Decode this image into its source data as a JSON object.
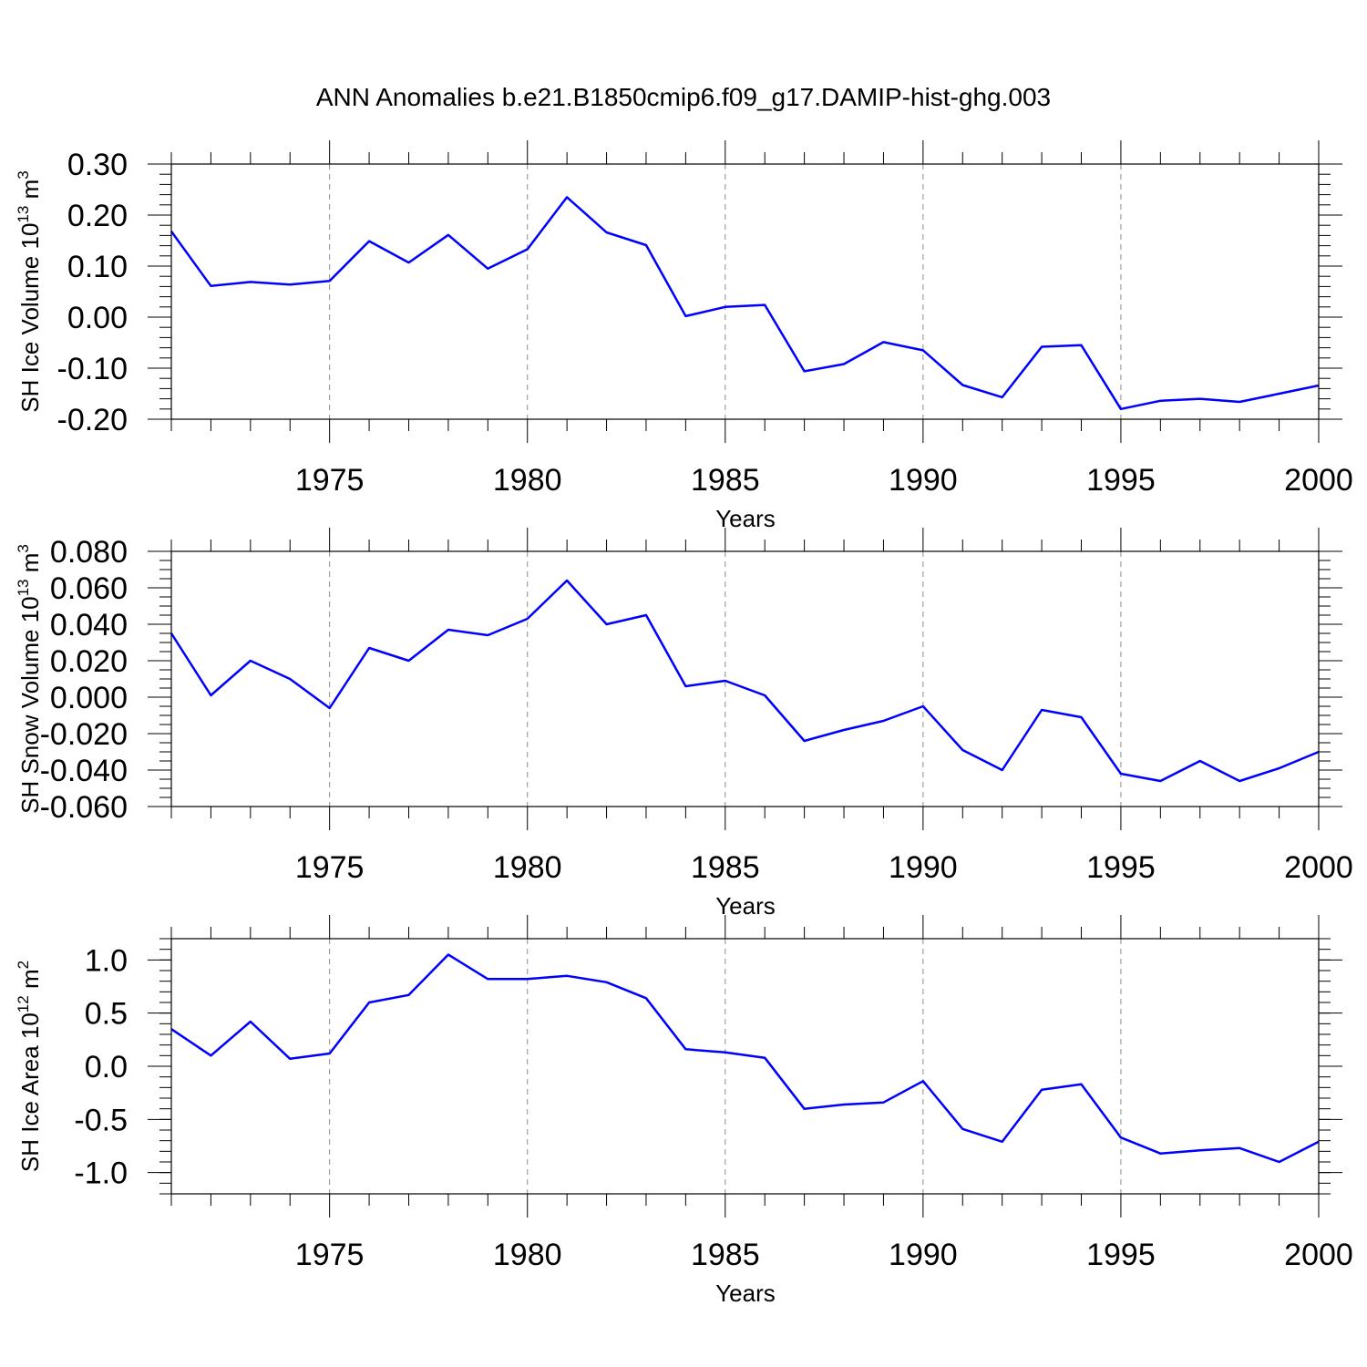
{
  "title": "ANN Anomalies b.e21.B1850cmip6.f09_g17.DAMIP-hist-ghg.003",
  "chart_data": [
    {
      "type": "line",
      "ylabel": {
        "text": "SH Ice Volume 10",
        "exp": "13",
        "unit": " m",
        "unit_exp": "3"
      },
      "xlabel": "Years",
      "xlim": [
        1971,
        2000
      ],
      "ylim": [
        -0.2,
        0.3
      ],
      "yticks": [
        -0.2,
        -0.1,
        0.0,
        0.1,
        0.2,
        0.3
      ],
      "ytick_labels": [
        "-0.20",
        "-0.10",
        "0.00",
        "0.10",
        "0.20",
        "0.30"
      ],
      "y_minor_step": 0.02,
      "xticks": [
        1975,
        1980,
        1985,
        1990,
        1995,
        2000
      ],
      "xtick_labels": [
        "1975",
        "1980",
        "1985",
        "1990",
        "1995",
        "2000"
      ],
      "grid": "vertical dashed at major x ticks",
      "color": "#0000ff",
      "x": [
        1971,
        1972,
        1973,
        1974,
        1975,
        1976,
        1977,
        1978,
        1979,
        1980,
        1981,
        1982,
        1983,
        1984,
        1985,
        1986,
        1987,
        1988,
        1989,
        1990,
        1991,
        1992,
        1993,
        1994,
        1995,
        1996,
        1997,
        1998,
        1999,
        2000
      ],
      "values": [
        0.168,
        0.061,
        0.069,
        0.064,
        0.071,
        0.149,
        0.107,
        0.161,
        0.095,
        0.133,
        0.235,
        0.166,
        0.141,
        0.002,
        0.02,
        0.024,
        -0.106,
        -0.092,
        -0.049,
        -0.065,
        -0.133,
        -0.157,
        -0.058,
        -0.055,
        -0.18,
        -0.164,
        -0.16,
        -0.166,
        -0.15,
        -0.134
      ]
    },
    {
      "type": "line",
      "ylabel": {
        "text": "SH Snow Volume 10",
        "exp": "13",
        "unit": " m",
        "unit_exp": "3"
      },
      "xlabel": "Years",
      "xlim": [
        1971,
        2000
      ],
      "ylim": [
        -0.06,
        0.08
      ],
      "yticks": [
        -0.06,
        -0.04,
        -0.02,
        0.0,
        0.02,
        0.04,
        0.06,
        0.08
      ],
      "ytick_labels": [
        "-0.060",
        "-0.040",
        "-0.020",
        "0.000",
        "0.020",
        "0.040",
        "0.060",
        "0.080"
      ],
      "y_minor_step": 0.005,
      "xticks": [
        1975,
        1980,
        1985,
        1990,
        1995,
        2000
      ],
      "xtick_labels": [
        "1975",
        "1980",
        "1985",
        "1990",
        "1995",
        "2000"
      ],
      "grid": "vertical dashed at major x ticks",
      "color": "#0000ff",
      "x": [
        1971,
        1972,
        1973,
        1974,
        1975,
        1976,
        1977,
        1978,
        1979,
        1980,
        1981,
        1982,
        1983,
        1984,
        1985,
        1986,
        1987,
        1988,
        1989,
        1990,
        1991,
        1992,
        1993,
        1994,
        1995,
        1996,
        1997,
        1998,
        1999,
        2000
      ],
      "values": [
        0.035,
        0.001,
        0.02,
        0.01,
        -0.006,
        0.027,
        0.02,
        0.037,
        0.034,
        0.043,
        0.064,
        0.04,
        0.045,
        0.006,
        0.009,
        0.001,
        -0.024,
        -0.018,
        -0.013,
        -0.005,
        -0.029,
        -0.04,
        -0.007,
        -0.011,
        -0.042,
        -0.046,
        -0.035,
        -0.046,
        -0.039,
        -0.03
      ]
    },
    {
      "type": "line",
      "ylabel": {
        "text": "SH Ice Area 10",
        "exp": "12",
        "unit": " m",
        "unit_exp": "2"
      },
      "xlabel": "Years",
      "xlim": [
        1971,
        2000
      ],
      "ylim": [
        -1.2,
        1.2
      ],
      "yticks": [
        -1.0,
        -0.5,
        0.0,
        0.5,
        1.0
      ],
      "ytick_labels": [
        "-1.0",
        "-0.5",
        "0.0",
        "0.5",
        "1.0"
      ],
      "y_minor_step": 0.1,
      "xticks": [
        1975,
        1980,
        1985,
        1990,
        1995,
        2000
      ],
      "xtick_labels": [
        "1975",
        "1980",
        "1985",
        "1990",
        "1995",
        "2000"
      ],
      "grid": "vertical dashed at major x ticks",
      "color": "#0000ff",
      "x": [
        1971,
        1972,
        1973,
        1974,
        1975,
        1976,
        1977,
        1978,
        1979,
        1980,
        1981,
        1982,
        1983,
        1984,
        1985,
        1986,
        1987,
        1988,
        1989,
        1990,
        1991,
        1992,
        1993,
        1994,
        1995,
        1996,
        1997,
        1998,
        1999,
        2000
      ],
      "values": [
        0.35,
        0.1,
        0.42,
        0.07,
        0.12,
        0.6,
        0.67,
        1.05,
        0.82,
        0.82,
        0.85,
        0.79,
        0.64,
        0.16,
        0.13,
        0.08,
        -0.4,
        -0.36,
        -0.34,
        -0.14,
        -0.59,
        -0.71,
        -0.22,
        -0.17,
        -0.67,
        -0.82,
        -0.79,
        -0.77,
        -0.9,
        -0.71
      ]
    }
  ]
}
